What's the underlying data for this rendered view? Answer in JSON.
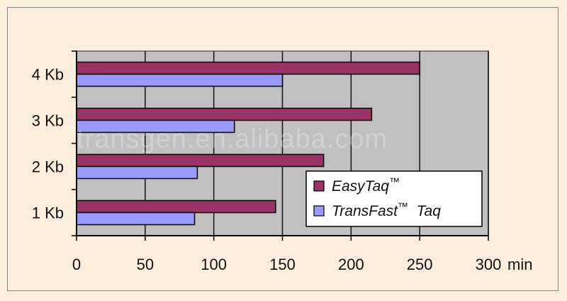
{
  "chart_data": {
    "type": "bar",
    "orientation": "horizontal",
    "categories": [
      "1 Kb",
      "2 Kb",
      "3 Kb",
      "4 Kb"
    ],
    "series": [
      {
        "name": "EasyTaq™",
        "values": [
          145,
          180,
          215,
          250
        ],
        "color": "#993366"
      },
      {
        "name": "TransFast™ Taq",
        "values": [
          86,
          88,
          115,
          150
        ],
        "color": "#9999ff"
      }
    ],
    "x_ticks": [
      "0",
      "50",
      "100",
      "150",
      "200",
      "250",
      "300"
    ],
    "xlim": [
      0,
      300
    ],
    "x_unit": "min",
    "grid": true,
    "legend_position": "bottom-right",
    "plot_background": "#c0c0c0",
    "watermark": "transgen.en.alibaba.com"
  }
}
